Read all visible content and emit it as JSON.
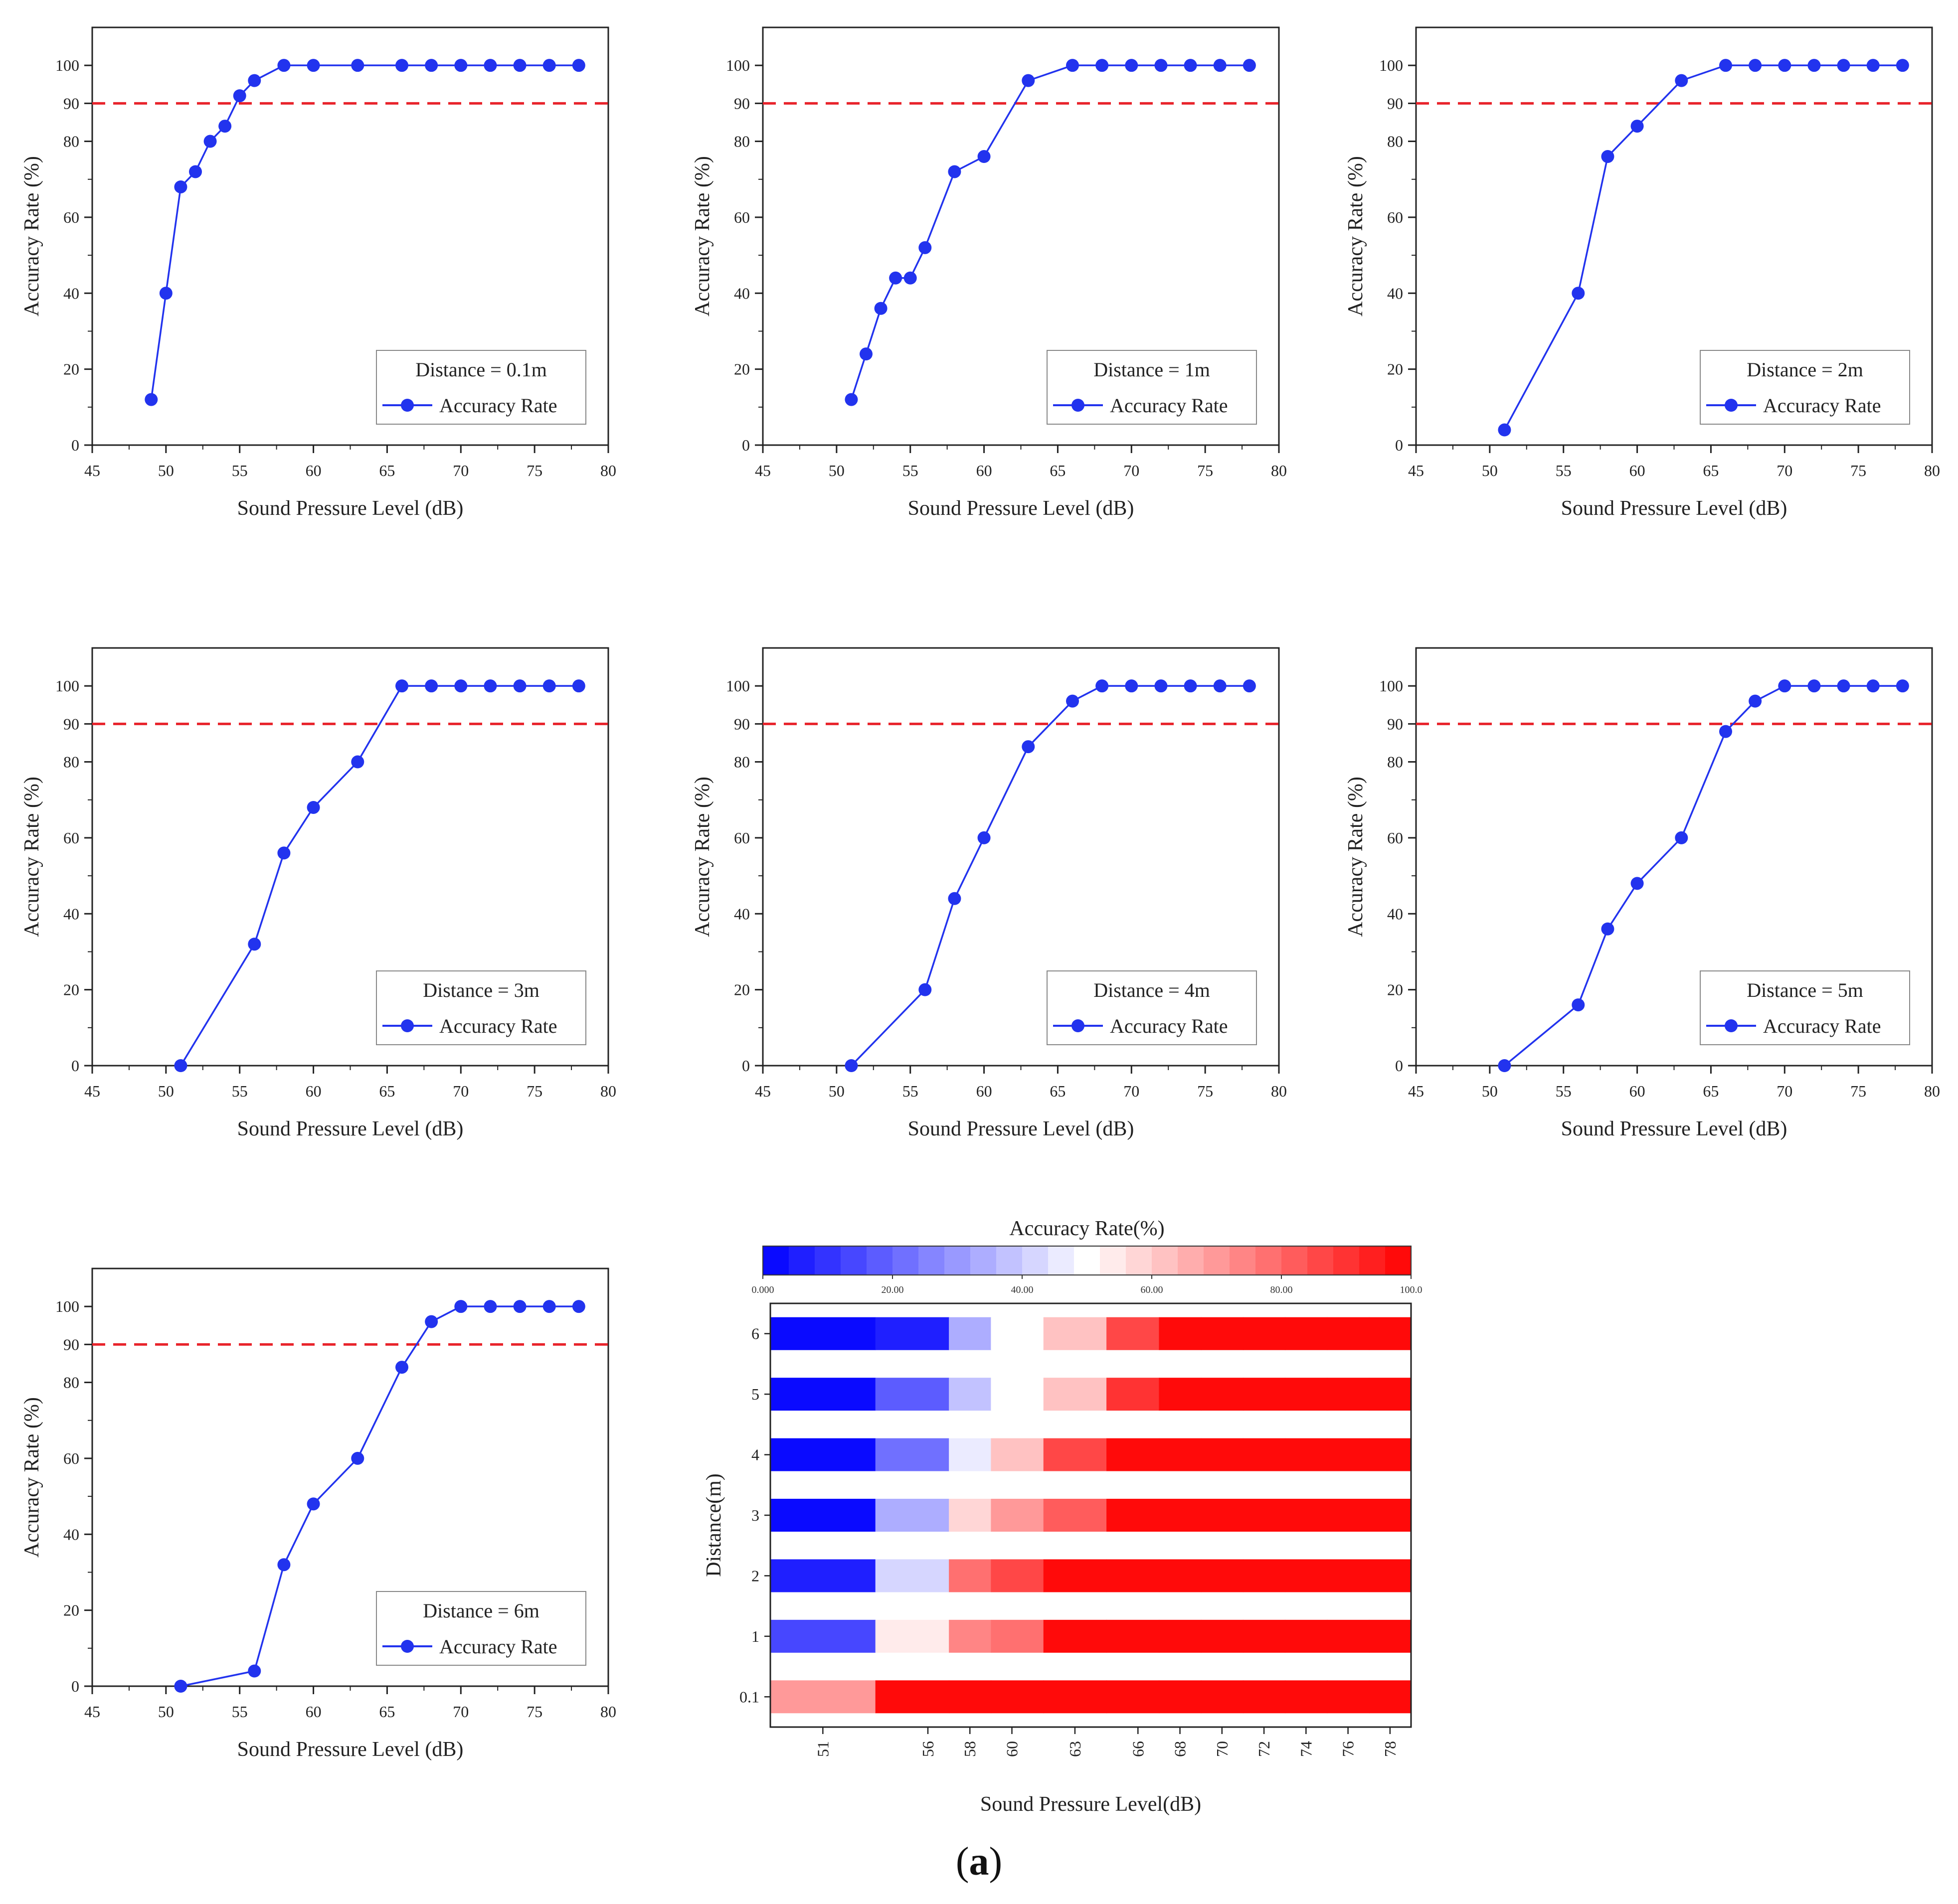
{
  "caption": {
    "open": "(",
    "letter": "a",
    "close": ")"
  },
  "style": {
    "line_color": "#2233ee",
    "marker_color": "#2233ee",
    "threshold_color": "#e8232b",
    "axis_color": "#222222",
    "heatmap_low": "#0000ff",
    "heatmap_mid": "#ffffff",
    "heatmap_high": "#ff0000"
  },
  "chart_data": [
    {
      "type": "line",
      "xlabel": "Sound Pressure Level (dB)",
      "ylabel": "Accuracy Rate (%)",
      "xlim": [
        45,
        80
      ],
      "ylim": [
        0,
        110
      ],
      "x_ticks": [
        45,
        50,
        55,
        60,
        65,
        70,
        75,
        80
      ],
      "y_ticks": [
        0,
        20,
        40,
        60,
        80,
        90,
        100
      ],
      "grid": false,
      "legend_position": "bottom-right",
      "legend_title": "Distance = 0.1m",
      "threshold": {
        "y": 90,
        "style": "dashed"
      },
      "series": [
        {
          "name": "Accuracy Rate",
          "x": [
            49,
            50,
            51,
            52,
            53,
            54,
            55,
            56,
            58,
            60,
            63,
            66,
            68,
            70,
            72,
            74,
            76,
            78
          ],
          "y": [
            12,
            40,
            68,
            72,
            80,
            84,
            92,
            96,
            100,
            100,
            100,
            100,
            100,
            100,
            100,
            100,
            100,
            100
          ]
        }
      ]
    },
    {
      "type": "line",
      "xlabel": "Sound Pressure Level (dB)",
      "ylabel": "Accuracy Rate (%)",
      "xlim": [
        45,
        80
      ],
      "ylim": [
        0,
        110
      ],
      "x_ticks": [
        45,
        50,
        55,
        60,
        65,
        70,
        75,
        80
      ],
      "y_ticks": [
        0,
        20,
        40,
        60,
        80,
        90,
        100
      ],
      "grid": false,
      "legend_position": "bottom-right",
      "legend_title": "Distance = 1m",
      "threshold": {
        "y": 90,
        "style": "dashed"
      },
      "series": [
        {
          "name": "Accuracy Rate",
          "x": [
            51,
            52,
            53,
            54,
            55,
            56,
            58,
            60,
            63,
            66,
            68,
            70,
            72,
            74,
            76,
            78
          ],
          "y": [
            12,
            24,
            36,
            44,
            44,
            52,
            72,
            76,
            96,
            100,
            100,
            100,
            100,
            100,
            100,
            100
          ]
        }
      ]
    },
    {
      "type": "line",
      "xlabel": "Sound Pressure Level (dB)",
      "ylabel": "Accuracy Rate (%)",
      "xlim": [
        45,
        80
      ],
      "ylim": [
        0,
        110
      ],
      "x_ticks": [
        45,
        50,
        55,
        60,
        65,
        70,
        75,
        80
      ],
      "y_ticks": [
        0,
        20,
        40,
        60,
        80,
        90,
        100
      ],
      "grid": false,
      "legend_position": "bottom-right",
      "legend_title": "Distance = 2m",
      "threshold": {
        "y": 90,
        "style": "dashed"
      },
      "series": [
        {
          "name": "Accuracy Rate",
          "x": [
            51,
            56,
            58,
            60,
            63,
            66,
            68,
            70,
            72,
            74,
            76,
            78
          ],
          "y": [
            4,
            40,
            76,
            84,
            96,
            100,
            100,
            100,
            100,
            100,
            100,
            100
          ]
        }
      ]
    },
    {
      "type": "line",
      "xlabel": "Sound Pressure Level (dB)",
      "ylabel": "Accuracy Rate (%)",
      "xlim": [
        45,
        80
      ],
      "ylim": [
        0,
        110
      ],
      "x_ticks": [
        45,
        50,
        55,
        60,
        65,
        70,
        75,
        80
      ],
      "y_ticks": [
        0,
        20,
        40,
        60,
        80,
        90,
        100
      ],
      "grid": false,
      "legend_position": "bottom-right",
      "legend_title": "Distance = 3m",
      "threshold": {
        "y": 90,
        "style": "dashed"
      },
      "series": [
        {
          "name": "Accuracy Rate",
          "x": [
            51,
            56,
            58,
            60,
            63,
            66,
            68,
            70,
            72,
            74,
            76,
            78
          ],
          "y": [
            0,
            32,
            56,
            68,
            80,
            100,
            100,
            100,
            100,
            100,
            100,
            100
          ]
        }
      ]
    },
    {
      "type": "line",
      "xlabel": "Sound Pressure Level (dB)",
      "ylabel": "Accuracy Rate (%)",
      "xlim": [
        45,
        80
      ],
      "ylim": [
        0,
        110
      ],
      "x_ticks": [
        45,
        50,
        55,
        60,
        65,
        70,
        75,
        80
      ],
      "y_ticks": [
        0,
        20,
        40,
        60,
        80,
        90,
        100
      ],
      "grid": false,
      "legend_position": "bottom-right",
      "legend_title": "Distance = 4m",
      "threshold": {
        "y": 90,
        "style": "dashed"
      },
      "series": [
        {
          "name": "Accuracy Rate",
          "x": [
            51,
            56,
            58,
            60,
            63,
            66,
            68,
            70,
            72,
            74,
            76,
            78
          ],
          "y": [
            0,
            20,
            44,
            60,
            84,
            96,
            100,
            100,
            100,
            100,
            100,
            100
          ]
        }
      ]
    },
    {
      "type": "line",
      "xlabel": "Sound Pressure Level (dB)",
      "ylabel": "Accuracy Rate (%)",
      "xlim": [
        45,
        80
      ],
      "ylim": [
        0,
        110
      ],
      "x_ticks": [
        45,
        50,
        55,
        60,
        65,
        70,
        75,
        80
      ],
      "y_ticks": [
        0,
        20,
        40,
        60,
        80,
        90,
        100
      ],
      "grid": false,
      "legend_position": "bottom-right",
      "legend_title": "Distance = 5m",
      "threshold": {
        "y": 90,
        "style": "dashed"
      },
      "series": [
        {
          "name": "Accuracy Rate",
          "x": [
            51,
            56,
            58,
            60,
            63,
            66,
            68,
            70,
            72,
            74,
            76,
            78
          ],
          "y": [
            0,
            16,
            36,
            48,
            60,
            88,
            96,
            100,
            100,
            100,
            100,
            100
          ]
        }
      ]
    },
    {
      "type": "line",
      "xlabel": "Sound Pressure Level (dB)",
      "ylabel": "Accuracy Rate (%)",
      "xlim": [
        45,
        80
      ],
      "ylim": [
        0,
        110
      ],
      "x_ticks": [
        45,
        50,
        55,
        60,
        65,
        70,
        75,
        80
      ],
      "y_ticks": [
        0,
        20,
        40,
        60,
        80,
        90,
        100
      ],
      "grid": false,
      "legend_position": "bottom-right",
      "legend_title": "Distance = 6m",
      "threshold": {
        "y": 90,
        "style": "dashed"
      },
      "series": [
        {
          "name": "Accuracy Rate",
          "x": [
            51,
            56,
            58,
            60,
            63,
            66,
            68,
            70,
            72,
            74,
            76,
            78
          ],
          "y": [
            0,
            4,
            32,
            48,
            60,
            84,
            96,
            100,
            100,
            100,
            100,
            100
          ]
        }
      ]
    },
    {
      "type": "heatmap",
      "title": "Accuracy Rate(%)",
      "xlabel": "Sound Pressure Level(dB)",
      "ylabel": "Distance(m)",
      "x_categories": [
        "51",
        "56",
        "58",
        "60",
        "63",
        "66",
        "68",
        "70",
        "72",
        "74",
        "76",
        "78"
      ],
      "x_centers": [
        51,
        56,
        58,
        60,
        63,
        66,
        68,
        70,
        72,
        74,
        76,
        78
      ],
      "x_edges": [
        48.5,
        53.5,
        57,
        59,
        61.5,
        64.5,
        67,
        69,
        71,
        73,
        75,
        77,
        79
      ],
      "y_categories": [
        "6",
        "5",
        "4",
        "3",
        "2",
        "1",
        "0.1"
      ],
      "colorbar": {
        "min": 0,
        "max": 100,
        "levels": 25,
        "tick_values": [
          0,
          20,
          40,
          60,
          80,
          100
        ],
        "tick_labels": [
          "0.000",
          "20.00",
          "40.00",
          "60.00",
          "80.00",
          "100.0"
        ]
      },
      "values": [
        [
          0,
          4,
          32,
          48,
          60,
          84,
          96,
          100,
          100,
          100,
          100,
          100
        ],
        [
          0,
          16,
          36,
          48,
          60,
          88,
          96,
          100,
          100,
          100,
          100,
          100
        ],
        [
          0,
          20,
          44,
          60,
          84,
          96,
          100,
          100,
          100,
          100,
          100,
          100
        ],
        [
          0,
          32,
          56,
          68,
          80,
          100,
          100,
          100,
          100,
          100,
          100,
          100
        ],
        [
          4,
          40,
          76,
          84,
          96,
          100,
          100,
          100,
          100,
          100,
          100,
          100
        ],
        [
          12,
          52,
          72,
          76,
          96,
          100,
          100,
          100,
          100,
          100,
          100,
          100
        ],
        [
          68,
          96,
          100,
          100,
          100,
          100,
          100,
          100,
          100,
          100,
          100,
          100
        ]
      ]
    }
  ]
}
